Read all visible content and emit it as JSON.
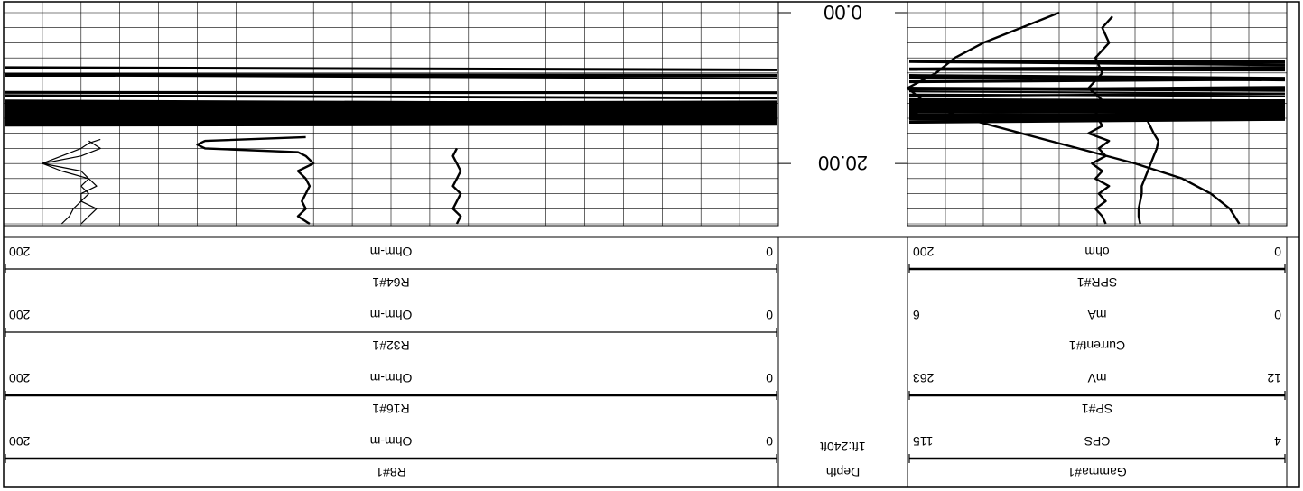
{
  "chart_data": {
    "type": "line",
    "title": "",
    "depth_track": {
      "header": "Depth",
      "scale": "1ft:240ft",
      "ticks": [
        "0.00",
        "20.00"
      ],
      "range": [
        0,
        28
      ]
    },
    "left_tracks": [
      {
        "name": "Gamma#1",
        "min": "4",
        "max": "115",
        "unit": "CPS",
        "style": "thick"
      },
      {
        "name": "SP#1",
        "min": "12",
        "max": "263",
        "unit": "mV",
        "style": "thick"
      },
      {
        "name": "Current#1",
        "min": "0",
        "max": "6",
        "unit": "mA",
        "style": "none"
      },
      {
        "name": "SPR#1",
        "min": "0",
        "max": "200",
        "unit": "ohm",
        "style": "thick"
      }
    ],
    "right_tracks": [
      {
        "name": "R8#1",
        "min": "0",
        "max": "200",
        "unit": "Ohm-m",
        "style": "thick"
      },
      {
        "name": "R16#1",
        "min": "0",
        "max": "200",
        "unit": "Ohm-m",
        "style": "thick"
      },
      {
        "name": "R32#1",
        "min": "0",
        "max": "200",
        "unit": "Ohm-m",
        "style": "thin"
      },
      {
        "name": "R64#1",
        "min": "0",
        "max": "200",
        "unit": "Ohm-m",
        "style": "thin"
      }
    ],
    "left_curves": [
      {
        "track": "Gamma#1",
        "depth": [
          0.5,
          2,
          4,
          6,
          8,
          10,
          12,
          13.5,
          15,
          16,
          17,
          18,
          19,
          20,
          21,
          22,
          23,
          24,
          25,
          26,
          27,
          28
        ],
        "value": [
          55,
          58,
          56,
          60,
          58,
          62,
          57,
          60,
          58,
          62,
          56,
          59,
          57,
          61,
          58,
          60,
          56,
          59,
          57,
          60,
          58,
          57
        ]
      },
      {
        "track": "SP#1",
        "depth": [
          12.5,
          14,
          16,
          17,
          18,
          19,
          20,
          21,
          22,
          23,
          24,
          25,
          26,
          27,
          28
        ],
        "value": [
          108,
          105,
          100,
          97,
          98,
          100,
          102,
          104,
          106,
          108,
          108,
          109,
          110,
          110,
          109
        ]
      },
      {
        "track": "SPR#1",
        "depth": [
          0,
          2,
          4,
          6,
          8,
          10,
          12,
          14,
          16,
          18,
          20,
          22,
          24,
          26,
          28
        ],
        "value": [
          120,
          140,
          160,
          175,
          185,
          200,
          190,
          170,
          140,
          110,
          80,
          55,
          40,
          30,
          25
        ]
      }
    ],
    "right_curves": [
      {
        "track": "R8#1",
        "depth": [
          18,
          19,
          20,
          21,
          22,
          23,
          24,
          25,
          26,
          27,
          28
        ],
        "value": [
          83,
          84,
          83,
          82,
          83,
          84,
          82,
          83,
          84,
          82,
          83
        ]
      },
      {
        "track": "R16#1",
        "depth": [
          16.5,
          17,
          17.5,
          18,
          18.5,
          19,
          20,
          21,
          22,
          23,
          24,
          25,
          26,
          27,
          28
        ],
        "value": [
          122,
          148,
          150,
          148,
          124,
          122,
          120,
          124,
          122,
          121,
          122,
          123,
          122,
          124,
          121
        ]
      },
      {
        "track": "R32#1",
        "depth": [
          16.8,
          17.3,
          18,
          19,
          20,
          21,
          22,
          23,
          24,
          25,
          26,
          27,
          28
        ],
        "value": [
          175,
          178,
          180,
          185,
          190,
          180,
          178,
          176,
          180,
          180,
          176,
          178,
          180
        ]
      },
      {
        "track": "R64#1",
        "depth": [
          17,
          18,
          19,
          20,
          21,
          22,
          23,
          24,
          25,
          26,
          27,
          28
        ],
        "value": [
          178,
          175,
          180,
          190,
          185,
          178,
          180,
          178,
          180,
          182,
          183,
          185
        ]
      }
    ]
  }
}
